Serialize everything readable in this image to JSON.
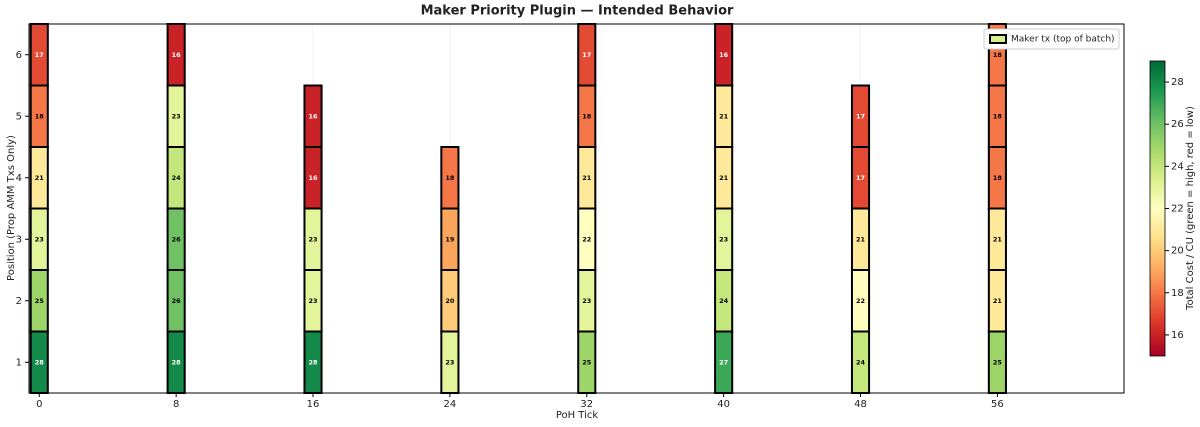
{
  "chart_data": {
    "type": "heatmap",
    "title": "Maker Priority Plugin — Intended Behavior",
    "x_label": "PoH Tick",
    "y_label": "Position (Prop AMM Txs Only)",
    "colorbar_label": "Total Cost / CU  (green = high, red = low)",
    "columns": [
      {
        "x": 0,
        "values": [
          28,
          25,
          23,
          21,
          18,
          17
        ]
      },
      {
        "x": 8,
        "values": [
          28,
          26,
          26,
          24,
          23,
          16
        ]
      },
      {
        "x": 16,
        "values": [
          28,
          23,
          23,
          16,
          16
        ]
      },
      {
        "x": 24,
        "values": [
          23,
          20,
          19,
          18
        ]
      },
      {
        "x": 32,
        "values": [
          25,
          23,
          22,
          21,
          18,
          17
        ]
      },
      {
        "x": 40,
        "values": [
          27,
          24,
          23,
          21,
          21,
          16
        ]
      },
      {
        "x": 48,
        "values": [
          24,
          22,
          21,
          17,
          17
        ]
      },
      {
        "x": 56,
        "values": [
          25,
          21,
          21,
          18,
          18,
          18
        ]
      }
    ],
    "xlim": [
      -0.6,
      63.4
    ],
    "xticks": [
      0,
      8,
      16,
      24,
      32,
      40,
      48,
      56
    ],
    "ylim": [
      0.5,
      6.5
    ],
    "yticks": [
      1,
      2,
      3,
      4,
      5,
      6
    ],
    "clim": [
      15,
      29
    ],
    "cticks": [
      16,
      18,
      20,
      22,
      24,
      26,
      28
    ],
    "colormap": [
      "#a50026",
      "#d73027",
      "#f46d43",
      "#fdae61",
      "#fee08b",
      "#ffffbf",
      "#d9ef8b",
      "#a6d96a",
      "#66bd63",
      "#1a9850",
      "#006837"
    ],
    "grid": true,
    "legend": {
      "label": "Maker tx (top of batch)",
      "loc": "upper right",
      "color": "#d9ef8b"
    }
  }
}
